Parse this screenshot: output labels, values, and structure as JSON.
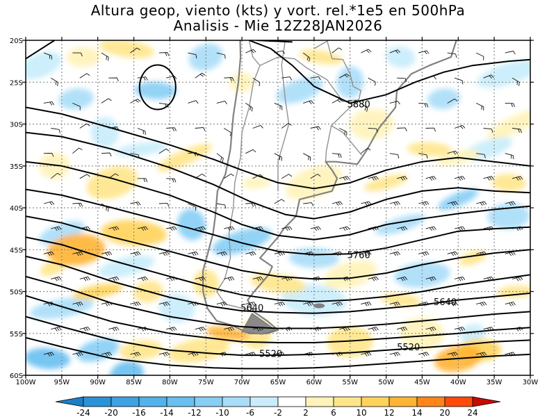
{
  "title": {
    "line1": "Altura geop, viento (kts) y vort. rel.*1e5 en 500hPa",
    "line2": "Analisis - Mie 12Z28JAN2026"
  },
  "map": {
    "lat_labels": [
      "20S",
      "25S",
      "30S",
      "35S",
      "40S",
      "45S",
      "50S",
      "55S",
      "60S"
    ],
    "lon_labels": [
      "100W",
      "95W",
      "90W",
      "85W",
      "80W",
      "75W",
      "70W",
      "65W",
      "60W",
      "55W",
      "50W",
      "45W",
      "40W",
      "35W",
      "30W"
    ],
    "contour_labels": [
      {
        "text": "5880",
        "lon": -53.8,
        "lat": -27.6
      },
      {
        "text": "5760",
        "lon": -53.8,
        "lat": -45.6
      },
      {
        "text": "5640",
        "lon": -68.6,
        "lat": -51.9
      },
      {
        "text": "5640",
        "lon": -41.8,
        "lat": -51.2
      },
      {
        "text": "5520",
        "lon": -66.0,
        "lat": -57.4
      },
      {
        "text": "5520",
        "lon": -46.9,
        "lat": -56.6
      }
    ]
  },
  "colorbar": {
    "tick_labels": [
      "-24",
      "-20",
      "-16",
      "-14",
      "-12",
      "-10",
      "-6",
      "-2",
      "2",
      "6",
      "10",
      "12",
      "14",
      "20",
      "24"
    ],
    "colors": [
      "#1c7fc4",
      "#2a93d7",
      "#3ea3e2",
      "#52b2ea",
      "#68bff0",
      "#86cef5",
      "#a8ddf8",
      "#c8ecfb",
      "#ffffff",
      "#fff3b8",
      "#ffe58a",
      "#ffd35a",
      "#ffb433",
      "#ff8519",
      "#ff4a0a",
      "#c80a00"
    ]
  }
}
